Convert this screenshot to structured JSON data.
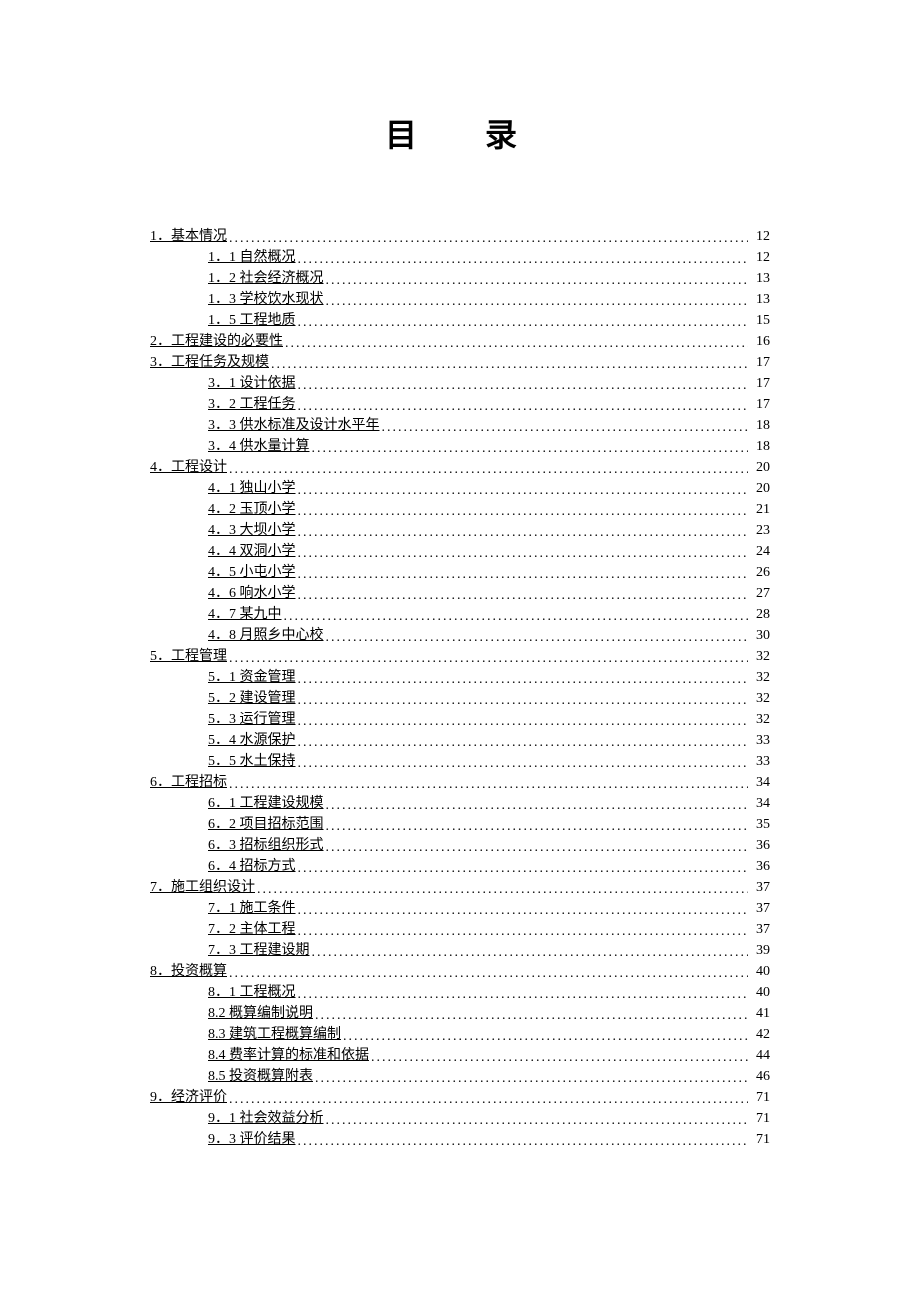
{
  "title": "目　录",
  "entries": [
    {
      "level": 1,
      "label": "1．基本情况",
      "page": "12"
    },
    {
      "level": 2,
      "label": "1．1 自然概况",
      "page": "12"
    },
    {
      "level": 2,
      "label": "1．2 社会经济概况",
      "page": "13"
    },
    {
      "level": 2,
      "label": "1．3 学校饮水现状",
      "page": "13"
    },
    {
      "level": 2,
      "label": "1．5 工程地质",
      "page": "15"
    },
    {
      "level": 1,
      "label": "2．工程建设的必要性",
      "page": "16"
    },
    {
      "level": 1,
      "label": "3．工程任务及规模",
      "page": "17"
    },
    {
      "level": 2,
      "label": "3．1 设计依据",
      "page": "17"
    },
    {
      "level": 2,
      "label": "3．2 工程任务",
      "page": "17"
    },
    {
      "level": 2,
      "label": "3．3 供水标准及设计水平年",
      "page": "18"
    },
    {
      "level": 2,
      "label": "3．4 供水量计算",
      "page": "18"
    },
    {
      "level": 1,
      "label": "4．工程设计",
      "page": "20"
    },
    {
      "level": 2,
      "label": "4．1 独山小学",
      "page": "20"
    },
    {
      "level": 2,
      "label": "4．2 玉顶小学",
      "page": "21"
    },
    {
      "level": 2,
      "label": "4．3 大坝小学",
      "page": "23"
    },
    {
      "level": 2,
      "label": "4．4 双洞小学",
      "page": "24"
    },
    {
      "level": 2,
      "label": "4．5 小屯小学",
      "page": "26"
    },
    {
      "level": 2,
      "label": "4．6 响水小学",
      "page": "27"
    },
    {
      "level": 2,
      "label": "4．7 某九中",
      "page": "28"
    },
    {
      "level": 2,
      "label": "4．8 月照乡中心校",
      "page": "30"
    },
    {
      "level": 1,
      "label": "5．工程管理",
      "page": "32"
    },
    {
      "level": 2,
      "label": "5．1 资金管理",
      "page": "32"
    },
    {
      "level": 2,
      "label": "5．2 建设管理",
      "page": "32"
    },
    {
      "level": 2,
      "label": "5．3 运行管理",
      "page": "32"
    },
    {
      "level": 2,
      "label": "5．4 水源保护",
      "page": "33"
    },
    {
      "level": 2,
      "label": "5．5 水土保持",
      "page": "33"
    },
    {
      "level": 1,
      "label": "6．工程招标",
      "page": "34"
    },
    {
      "level": 2,
      "label": "6．1 工程建设规模",
      "page": "34"
    },
    {
      "level": 2,
      "label": "6．2 项目招标范围",
      "page": "35"
    },
    {
      "level": 2,
      "label": "6．3 招标组织形式",
      "page": "36"
    },
    {
      "level": 2,
      "label": "6．4 招标方式",
      "page": "36"
    },
    {
      "level": 1,
      "label": "7．施工组织设计",
      "page": "37"
    },
    {
      "level": 2,
      "label": "7．1 施工条件",
      "page": "37"
    },
    {
      "level": 2,
      "label": "7．2 主体工程",
      "page": "37"
    },
    {
      "level": 2,
      "label": "7．3 工程建设期",
      "page": "39"
    },
    {
      "level": 1,
      "label": "8．投资概算",
      "page": "40"
    },
    {
      "level": 2,
      "label": "8．1 工程概况",
      "page": "40"
    },
    {
      "level": 2,
      "label": "8.2 概算编制说明",
      "page": "41"
    },
    {
      "level": 2,
      "label": "8.3 建筑工程概算编制",
      "page": "42"
    },
    {
      "level": 2,
      "label": "8.4 费率计算的标准和依据",
      "page": "44"
    },
    {
      "level": 2,
      "label": "8.5 投资概算附表",
      "page": "46"
    },
    {
      "level": 1,
      "label": "9．经济评价",
      "page": "71"
    },
    {
      "level": 2,
      "label": "9．1 社会效益分析",
      "page": "71"
    },
    {
      "level": 2,
      "label": "9．3 评价结果",
      "page": "71"
    }
  ]
}
